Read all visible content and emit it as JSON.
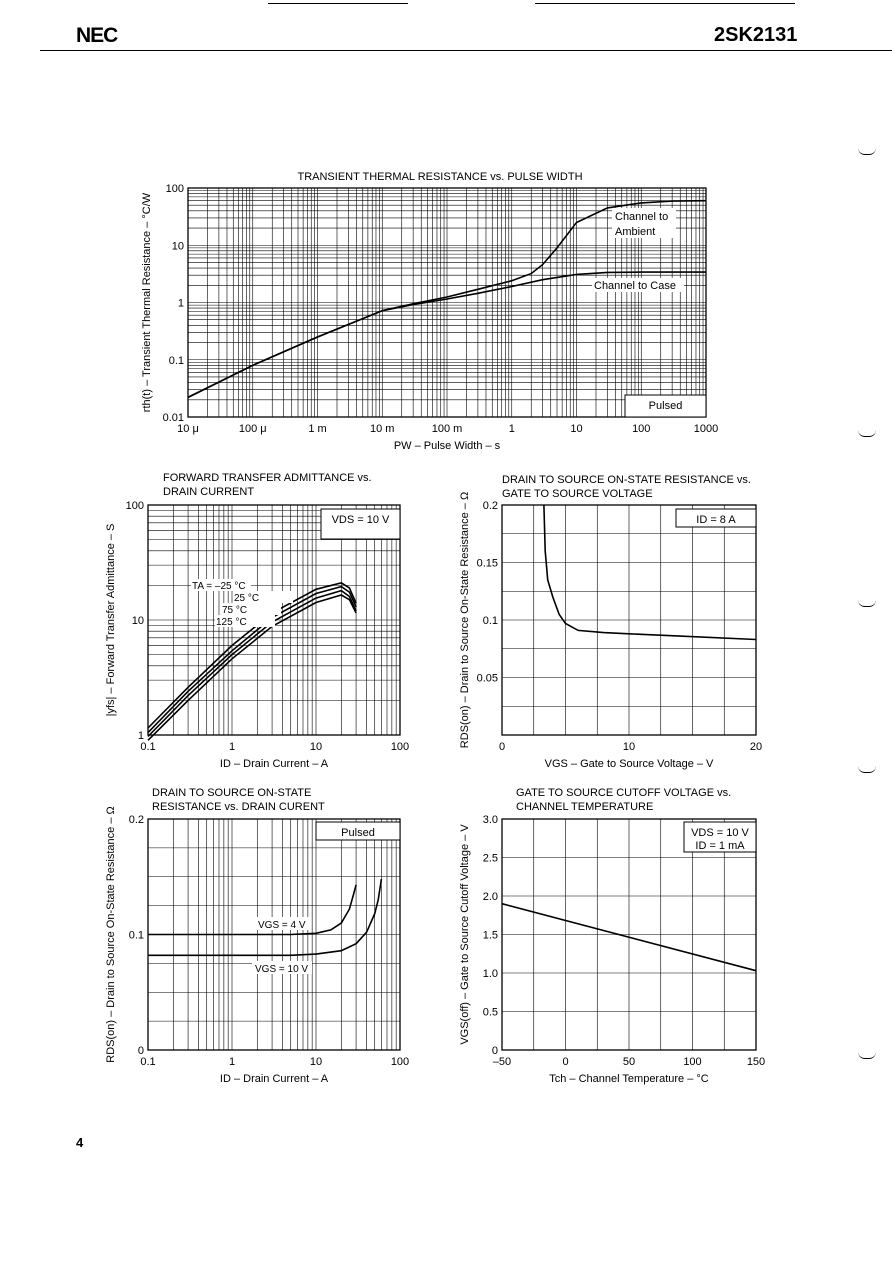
{
  "header": {
    "logo": "NEC",
    "part_number": "2SK2131"
  },
  "page_number": "4",
  "chart_data": [
    {
      "id": "thermal",
      "type": "line",
      "title": "TRANSIENT THERMAL RESISTANCE vs. PULSE WIDTH",
      "xlabel": "PW – Pulse Width – s",
      "ylabel": "rth(t) – Transient Thermal Resistance – °C/W",
      "xscale": "log",
      "yscale": "log",
      "xlim": [
        1e-05,
        1000
      ],
      "ylim": [
        0.01,
        100
      ],
      "xticks": [
        1e-05,
        0.0001,
        0.001,
        0.01,
        0.1,
        1,
        10,
        100,
        1000
      ],
      "xtick_labels": [
        "10 μ",
        "100 μ",
        "1 m",
        "10 m",
        "100 m",
        "1",
        "10",
        "100",
        "1000"
      ],
      "yticks": [
        0.01,
        0.1,
        1,
        10,
        100
      ],
      "ytick_labels": [
        "0.01",
        "0.1",
        "1",
        "10",
        "100"
      ],
      "annotation": "Pulsed",
      "series": [
        {
          "name": "Channel to Ambient",
          "x": [
            1e-05,
            0.0001,
            0.001,
            0.01,
            0.03,
            0.1,
            0.3,
            1,
            2,
            3,
            5,
            10,
            30,
            100,
            300,
            1000
          ],
          "y": [
            0.022,
            0.08,
            0.25,
            0.72,
            0.95,
            1.25,
            1.7,
            2.4,
            3.2,
            4.6,
            9,
            25,
            45,
            55,
            59,
            60
          ]
        },
        {
          "name": "Channel to Case",
          "x": [
            1e-05,
            0.0001,
            0.001,
            0.01,
            0.03,
            0.1,
            0.3,
            1,
            3,
            10,
            30,
            100,
            1000
          ],
          "y": [
            0.022,
            0.08,
            0.25,
            0.72,
            0.92,
            1.15,
            1.45,
            1.9,
            2.5,
            3.1,
            3.35,
            3.4,
            3.4
          ]
        }
      ]
    },
    {
      "id": "yfs",
      "type": "line",
      "title_lines": [
        "FORWARD TRANSFER ADMITTANCE vs.",
        "DRAIN CURRENT"
      ],
      "xlabel": "ID – Drain Current – A",
      "ylabel": "|yfs| – Forward Transfer Admittance – S",
      "xscale": "log",
      "yscale": "log",
      "xlim": [
        0.1,
        100
      ],
      "ylim": [
        1,
        100
      ],
      "xticks": [
        0.1,
        1,
        10,
        100
      ],
      "xtick_labels": [
        "0.1",
        "1",
        "10",
        "100"
      ],
      "yticks": [
        1,
        10,
        100
      ],
      "ytick_labels": [
        "1",
        "10",
        "100"
      ],
      "annotation": "VDS = 10 V",
      "series": [
        {
          "name": "TA = –25 °C",
          "x": [
            0.1,
            0.3,
            1,
            3,
            10,
            20,
            25,
            30
          ],
          "y": [
            1.15,
            2.6,
            6.0,
            11.5,
            18.5,
            21,
            19,
            14
          ]
        },
        {
          "name": "25 °C",
          "x": [
            0.1,
            0.3,
            1,
            3,
            10,
            20,
            25,
            30
          ],
          "y": [
            1.05,
            2.4,
            5.4,
            10.5,
            17,
            19.5,
            17.5,
            13
          ]
        },
        {
          "name": "75 °C",
          "x": [
            0.1,
            0.3,
            1,
            3,
            10,
            20,
            25,
            30
          ],
          "y": [
            0.97,
            2.2,
            5.0,
            9.6,
            15.5,
            18,
            16,
            12
          ]
        },
        {
          "name": "125 °C",
          "x": [
            0.1,
            0.3,
            1,
            3,
            10,
            20,
            25,
            30
          ],
          "y": [
            0.9,
            2.0,
            4.6,
            8.8,
            14.2,
            16.5,
            15,
            11.5
          ]
        }
      ]
    },
    {
      "id": "rds_vgs",
      "type": "line",
      "title_lines": [
        "DRAIN TO SOURCE ON-STATE RESISTANCE vs.",
        "GATE TO SOURCE VOLTAGE"
      ],
      "xlabel": "VGS – Gate to Source Voltage – V",
      "ylabel": "RDS(on) – Drain to Source On-State Resistance – Ω",
      "xscale": "linear",
      "yscale": "linear",
      "xlim": [
        0,
        20
      ],
      "ylim": [
        0,
        0.2
      ],
      "xticks": [
        0,
        10,
        20
      ],
      "xtick_labels": [
        "0",
        "10",
        "20"
      ],
      "yticks": [
        0.05,
        0.1,
        0.15,
        0.2
      ],
      "ytick_labels": [
        "0.05",
        "0.1",
        "0.15",
        "0.2"
      ],
      "annotation": "ID = 8 A",
      "series": [
        {
          "name": "ID = 8 A",
          "x": [
            3.3,
            3.4,
            3.6,
            4,
            4.5,
            5,
            6,
            8,
            10,
            14,
            20
          ],
          "y": [
            0.2,
            0.16,
            0.135,
            0.12,
            0.105,
            0.097,
            0.091,
            0.089,
            0.088,
            0.086,
            0.083
          ]
        }
      ]
    },
    {
      "id": "rds_id",
      "type": "line",
      "title_lines": [
        "DRAIN TO SOURCE ON-STATE",
        "RESISTANCE vs. DRAIN CURENT"
      ],
      "xlabel": "ID – Drain Current – A",
      "ylabel": "RDS(on) – Drain to Source On-State Resistance – Ω",
      "xscale": "log",
      "yscale": "linear",
      "xlim": [
        0.1,
        100
      ],
      "ylim": [
        0,
        0.2
      ],
      "xticks": [
        0.1,
        1,
        10,
        100
      ],
      "xtick_labels": [
        "0.1",
        "1",
        "10",
        "100"
      ],
      "yticks": [
        0,
        0.1,
        0.2
      ],
      "ytick_labels": [
        "0",
        "0.1",
        "0.2"
      ],
      "annotation": "Pulsed",
      "series": [
        {
          "name": "VGS = 4 V",
          "x": [
            0.1,
            1,
            5,
            10,
            15,
            20,
            25,
            28,
            30
          ],
          "y": [
            0.1,
            0.1,
            0.1,
            0.101,
            0.104,
            0.11,
            0.122,
            0.135,
            0.143
          ]
        },
        {
          "name": "VGS = 10 V",
          "x": [
            0.1,
            1,
            5,
            10,
            20,
            30,
            40,
            50,
            55,
            60
          ],
          "y": [
            0.082,
            0.082,
            0.082,
            0.083,
            0.086,
            0.092,
            0.102,
            0.118,
            0.13,
            0.148
          ]
        }
      ]
    },
    {
      "id": "vgs_off",
      "type": "line",
      "title_lines": [
        "GATE TO SOURCE CUTOFF VOLTAGE vs.",
        "CHANNEL TEMPERATURE"
      ],
      "xlabel": "Tch – Channel Temperature – °C",
      "ylabel": "VGS(off) – Gate to Source Cutoff Voltage – V",
      "xscale": "linear",
      "yscale": "linear",
      "xlim": [
        -50,
        150
      ],
      "ylim": [
        0,
        3.0
      ],
      "xticks": [
        -50,
        0,
        50,
        100,
        150
      ],
      "xtick_labels": [
        "–50",
        "0",
        "50",
        "100",
        "150"
      ],
      "yticks": [
        0,
        0.5,
        1.0,
        1.5,
        2.0,
        2.5,
        3.0
      ],
      "ytick_labels": [
        "0",
        "0.5",
        "1.0",
        "1.5",
        "2.0",
        "2.5",
        "3.0"
      ],
      "annotation_lines": [
        "VDS = 10 V",
        "ID = 1 mA"
      ],
      "series": [
        {
          "name": "VGS(off)",
          "x": [
            -50,
            150
          ],
          "y": [
            1.9,
            1.03
          ]
        }
      ]
    }
  ]
}
